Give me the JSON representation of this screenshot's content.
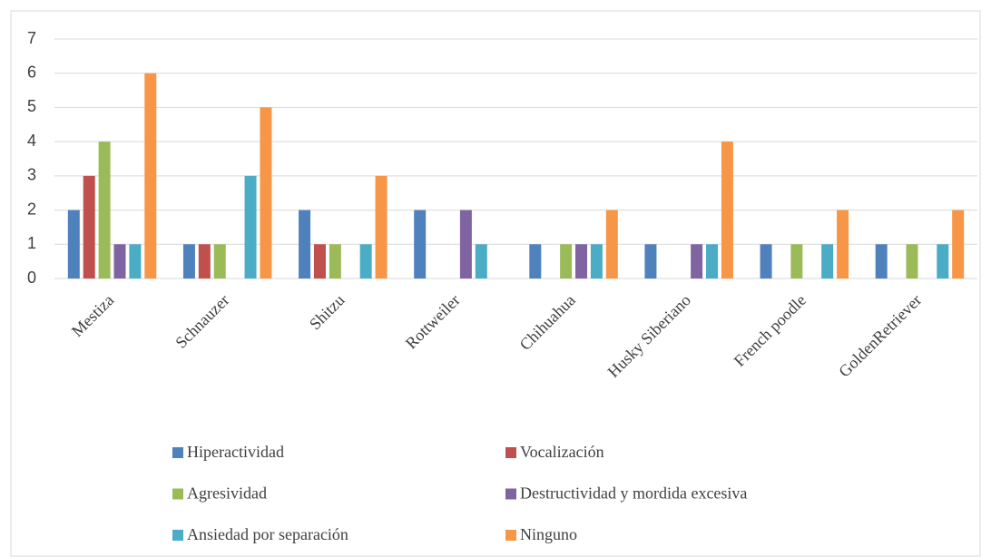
{
  "chart_data": {
    "type": "bar",
    "categories": [
      "Mestiza",
      "Schnauzer",
      "Shitzu",
      "Rottweiler",
      "Chihuahua",
      "Husky Siberiano",
      "French poodle",
      "GoldenRetriever"
    ],
    "series": [
      {
        "name": "Hiperactividad",
        "color": "#4f81bd",
        "values": [
          2,
          1,
          2,
          2,
          1,
          1,
          1,
          1
        ]
      },
      {
        "name": "Vocalización",
        "color": "#c0504d",
        "values": [
          3,
          1,
          1,
          null,
          null,
          null,
          null,
          null
        ]
      },
      {
        "name": "Agresividad",
        "color": "#9bbb59",
        "values": [
          4,
          1,
          1,
          null,
          1,
          null,
          1,
          1
        ]
      },
      {
        "name": "Destructividad y mordida excesiva",
        "color": "#8064a2",
        "values": [
          1,
          null,
          null,
          2,
          1,
          1,
          null,
          null
        ]
      },
      {
        "name": "Ansiedad por separación",
        "color": "#4bacc6",
        "values": [
          1,
          3,
          1,
          1,
          1,
          1,
          1,
          1
        ]
      },
      {
        "name": "Ninguno",
        "color": "#f79646",
        "values": [
          6,
          5,
          3,
          null,
          2,
          4,
          2,
          2
        ]
      }
    ],
    "ylim": [
      0,
      7
    ],
    "yticks": [
      0,
      1,
      2,
      3,
      4,
      5,
      6,
      7
    ],
    "grid": true,
    "legend": "bottom"
  }
}
